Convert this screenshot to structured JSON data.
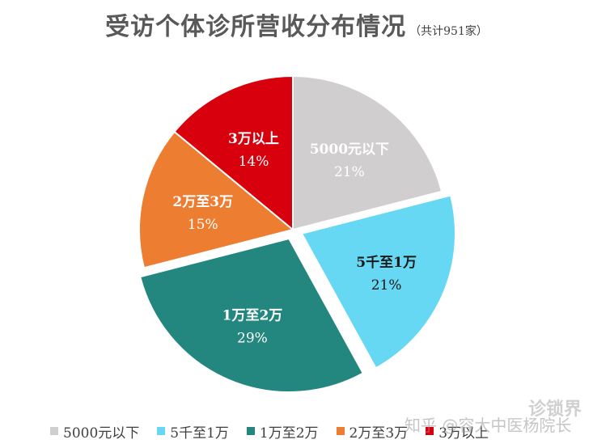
{
  "header": {
    "title": "受访个体诊所营收分布情况",
    "subtitle": "（共计951家）"
  },
  "chart_data": {
    "type": "pie",
    "title": "受访个体诊所营收分布情况",
    "subtitle": "（共计951家）",
    "legend_position": "bottom",
    "slices": [
      {
        "name": "5000元以下",
        "value": 21,
        "label": "21%",
        "color": "#D0CECE",
        "label_color": "#ffffff",
        "exploded": false
      },
      {
        "name": "5千至1万",
        "value": 21,
        "label": "21%",
        "color": "#66D8F3",
        "label_color": "#1a1a1a",
        "exploded": true
      },
      {
        "name": "1万至2万",
        "value": 29,
        "label": "29%",
        "color": "#23877F",
        "label_color": "#ffffff",
        "exploded": true
      },
      {
        "name": "2万至3万",
        "value": 15,
        "label": "15%",
        "color": "#ED7D31",
        "label_color": "#ffffff",
        "exploded": false
      },
      {
        "name": "3万以上",
        "value": 14,
        "label": "14%",
        "color": "#D9000E",
        "label_color": "#ffffff",
        "exploded": false
      }
    ]
  },
  "watermark": {
    "logo_text": "诊锁界",
    "source_text": "知乎 @容大中医杨院长"
  }
}
